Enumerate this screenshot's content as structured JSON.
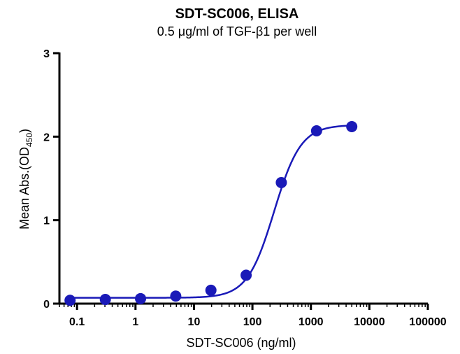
{
  "chart_data": {
    "type": "scatter",
    "title": "SDT-SC006, ELISA",
    "subtitle": "0.5 μg/ml of TGF-β1 per well",
    "xlabel": "SDT-SC006 (ng/ml)",
    "ylabel_main": "Mean Abs.(OD",
    "ylabel_sub": "450",
    "ylabel_end": ")",
    "x_scale": "log",
    "xlim": [
      0.05,
      100000
    ],
    "ylim": [
      0,
      3
    ],
    "x_ticks": [
      {
        "value": 0.1,
        "label": "0.1"
      },
      {
        "value": 1,
        "label": "1"
      },
      {
        "value": 10,
        "label": "10"
      },
      {
        "value": 100,
        "label": "100"
      },
      {
        "value": 1000,
        "label": "1000"
      },
      {
        "value": 10000,
        "label": "10000"
      },
      {
        "value": 100000,
        "label": "100000"
      }
    ],
    "y_ticks": [
      {
        "value": 0,
        "label": "0"
      },
      {
        "value": 1,
        "label": "1"
      },
      {
        "value": 2,
        "label": "2"
      },
      {
        "value": 3,
        "label": "3"
      }
    ],
    "series": [
      {
        "x": [
          0.076,
          0.305,
          1.22,
          4.88,
          19.5,
          78,
          312,
          1250,
          5000
        ],
        "y": [
          0.04,
          0.05,
          0.06,
          0.09,
          0.16,
          0.34,
          1.45,
          2.07,
          2.12
        ],
        "color": "#1a1ab8",
        "fit": {
          "model": "4PL",
          "bottom": 0.07,
          "top": 2.14,
          "ec50": 235,
          "hill": 1.9
        }
      }
    ],
    "grid": false,
    "legend": "none"
  }
}
